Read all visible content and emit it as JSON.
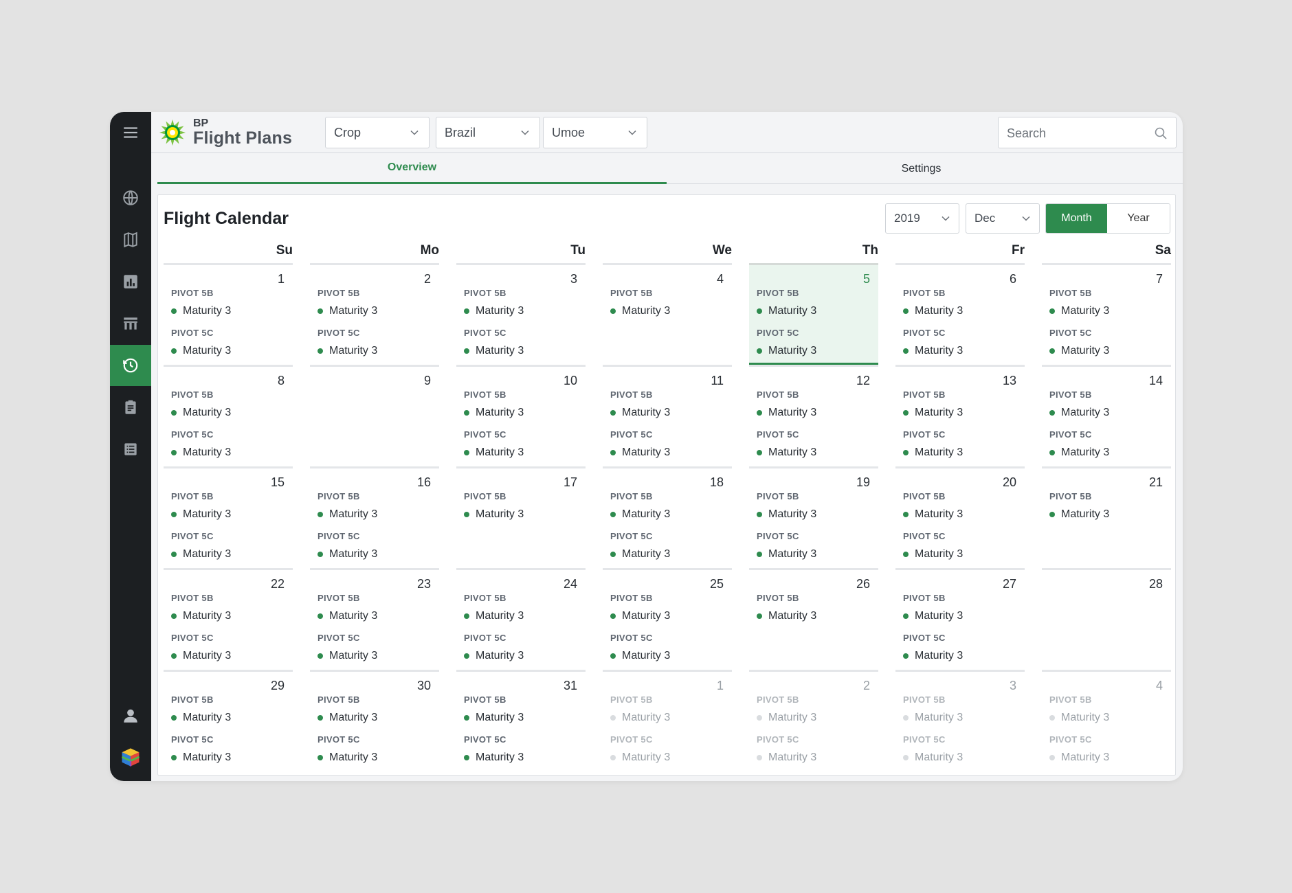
{
  "app": {
    "brand_small": "BP",
    "brand_title": "Flight Plans",
    "accent_color": "#2e8b4e"
  },
  "filters": [
    {
      "label": "Crop"
    },
    {
      "label": "Brazil"
    },
    {
      "label": "Umoe"
    }
  ],
  "search": {
    "placeholder": "Search"
  },
  "tabs": [
    {
      "label": "Overview",
      "active": true
    },
    {
      "label": "Settings",
      "active": false
    }
  ],
  "sidebar": {
    "items": [
      {
        "icon": "globe-icon"
      },
      {
        "icon": "map-icon"
      },
      {
        "icon": "bar-chart-icon"
      },
      {
        "icon": "table-icon"
      },
      {
        "icon": "history-icon",
        "active": true
      },
      {
        "icon": "clipboard-icon"
      },
      {
        "icon": "list-icon"
      }
    ],
    "bottom": [
      {
        "icon": "user-icon"
      },
      {
        "icon": "cube-logo-icon"
      }
    ]
  },
  "calendar": {
    "title": "Flight Calendar",
    "year": "2019",
    "month": "Dec",
    "view_month": "Month",
    "view_year": "Year",
    "weekdays": [
      "Su",
      "Mo",
      "Tu",
      "We",
      "Th",
      "Fr",
      "Sa"
    ],
    "plan_5b": "PIVOT 5B",
    "plan_5c": "PIVOT 5C",
    "entry_label": "Maturity 3",
    "weeks": [
      [
        {
          "day": "1",
          "plans": [
            "PIVOT 5B",
            "PIVOT 5C"
          ]
        },
        {
          "day": "2",
          "plans": [
            "PIVOT 5B",
            "PIVOT 5C"
          ]
        },
        {
          "day": "3",
          "plans": [
            "PIVOT 5B",
            "PIVOT 5C"
          ]
        },
        {
          "day": "4",
          "plans": [
            "PIVOT 5B"
          ]
        },
        {
          "day": "5",
          "plans": [
            "PIVOT 5B",
            "PIVOT 5C"
          ],
          "selected": true
        },
        {
          "day": "6",
          "plans": [
            "PIVOT 5B",
            "PIVOT 5C"
          ]
        },
        {
          "day": "7",
          "plans": [
            "PIVOT 5B",
            "PIVOT 5C"
          ]
        }
      ],
      [
        {
          "day": "8",
          "plans": [
            "PIVOT 5B",
            "PIVOT 5C"
          ]
        },
        {
          "day": "9",
          "plans": []
        },
        {
          "day": "10",
          "plans": [
            "PIVOT 5B",
            "PIVOT 5C"
          ]
        },
        {
          "day": "11",
          "plans": [
            "PIVOT 5B",
            "PIVOT 5C"
          ]
        },
        {
          "day": "12",
          "plans": [
            "PIVOT 5B",
            "PIVOT 5C"
          ]
        },
        {
          "day": "13",
          "plans": [
            "PIVOT 5B",
            "PIVOT 5C"
          ]
        },
        {
          "day": "14",
          "plans": [
            "PIVOT 5B",
            "PIVOT 5C"
          ]
        }
      ],
      [
        {
          "day": "15",
          "plans": [
            "PIVOT 5B",
            "PIVOT 5C"
          ]
        },
        {
          "day": "16",
          "plans": [
            "PIVOT 5B",
            "PIVOT 5C"
          ]
        },
        {
          "day": "17",
          "plans": [
            "PIVOT 5B"
          ]
        },
        {
          "day": "18",
          "plans": [
            "PIVOT 5B",
            "PIVOT 5C"
          ]
        },
        {
          "day": "19",
          "plans": [
            "PIVOT 5B",
            "PIVOT 5C"
          ]
        },
        {
          "day": "20",
          "plans": [
            "PIVOT 5B",
            "PIVOT 5C"
          ]
        },
        {
          "day": "21",
          "plans": [
            "PIVOT 5B"
          ]
        }
      ],
      [
        {
          "day": "22",
          "plans": [
            "PIVOT 5B",
            "PIVOT 5C"
          ]
        },
        {
          "day": "23",
          "plans": [
            "PIVOT 5B",
            "PIVOT 5C"
          ]
        },
        {
          "day": "24",
          "plans": [
            "PIVOT 5B",
            "PIVOT 5C"
          ]
        },
        {
          "day": "25",
          "plans": [
            "PIVOT 5B",
            "PIVOT 5C"
          ]
        },
        {
          "day": "26",
          "plans": [
            "PIVOT 5B"
          ]
        },
        {
          "day": "27",
          "plans": [
            "PIVOT 5B",
            "PIVOT 5C"
          ]
        },
        {
          "day": "28",
          "plans": []
        }
      ],
      [
        {
          "day": "29",
          "plans": [
            "PIVOT 5B",
            "PIVOT 5C"
          ]
        },
        {
          "day": "30",
          "plans": [
            "PIVOT 5B",
            "PIVOT 5C"
          ]
        },
        {
          "day": "31",
          "plans": [
            "PIVOT 5B",
            "PIVOT 5C"
          ]
        },
        {
          "day": "1",
          "plans": [
            "PIVOT 5B",
            "PIVOT 5C"
          ],
          "other_month": true
        },
        {
          "day": "2",
          "plans": [
            "PIVOT 5B",
            "PIVOT 5C"
          ],
          "other_month": true
        },
        {
          "day": "3",
          "plans": [
            "PIVOT 5B",
            "PIVOT 5C"
          ],
          "other_month": true
        },
        {
          "day": "4",
          "plans": [
            "PIVOT 5B",
            "PIVOT 5C"
          ],
          "other_month": true
        }
      ]
    ]
  }
}
